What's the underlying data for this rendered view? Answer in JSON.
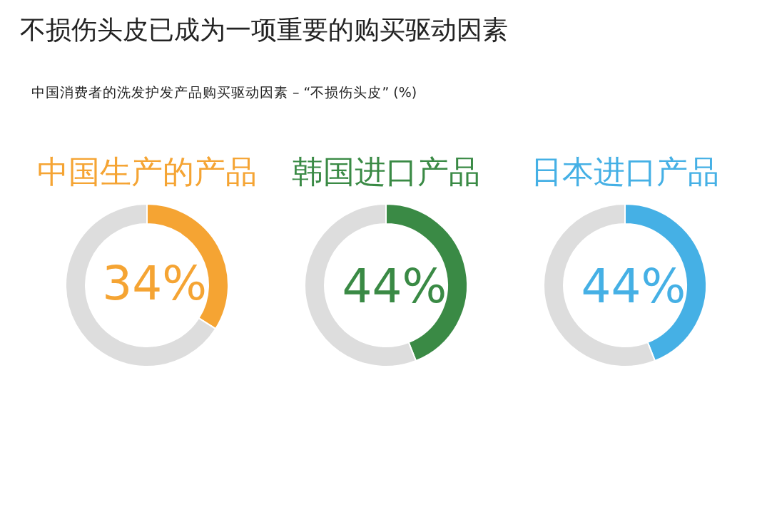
{
  "chart_data": [
    {
      "type": "other",
      "title": "不损伤头皮已成为一项重要的购买驱动因素",
      "subtitle": "中国消费者的洗发护发产品购买驱动因素 – “不损伤头皮” (%)"
    },
    {
      "type": "donut",
      "title": "中国生产的产品",
      "categories": [
        null,
        null
      ],
      "values": [
        34,
        66
      ],
      "colors": [
        "#f5a433",
        "#dddddd"
      ],
      "value_labels": [
        "34%",
        null
      ]
    },
    {
      "type": "donut",
      "title": "韩国进口产品",
      "categories": [
        null,
        null
      ],
      "values": [
        44,
        56
      ],
      "colors": [
        "#3a8a45",
        "#dddddd"
      ],
      "value_labels": [
        "44%",
        null
      ]
    },
    {
      "type": "donut",
      "title": "日本进口产品",
      "categories": [
        null,
        null
      ],
      "values": [
        44,
        56
      ],
      "colors": [
        "#45b0e5",
        "#dddddd"
      ],
      "value_labels": [
        "44%",
        null
      ]
    }
  ]
}
